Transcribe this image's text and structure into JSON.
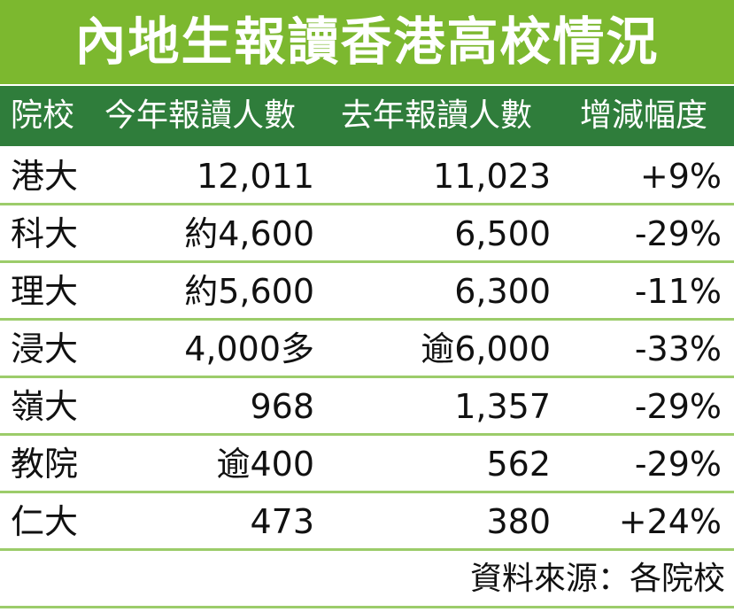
{
  "title": "內地生報讀香港高校情況",
  "table": {
    "header": [
      "院校",
      "今年報讀人數",
      "去年報讀人數",
      "增減幅度"
    ],
    "rows": [
      [
        "港大",
        "12,011",
        "11,023",
        "+9%"
      ],
      [
        "科大",
        "約4,600",
        "6,500",
        "-29%"
      ],
      [
        "理大",
        "約5,600",
        "6,300",
        "-11%"
      ],
      [
        "浸大",
        "4,000多",
        "逾6,000",
        "-33%"
      ],
      [
        "嶺大",
        "968",
        "1,357",
        "-29%"
      ],
      [
        "教院",
        "逾400",
        "562",
        "-29%"
      ],
      [
        "仁大",
        "473",
        "380",
        "+24%"
      ]
    ]
  },
  "source": "資料來源：各院校"
}
